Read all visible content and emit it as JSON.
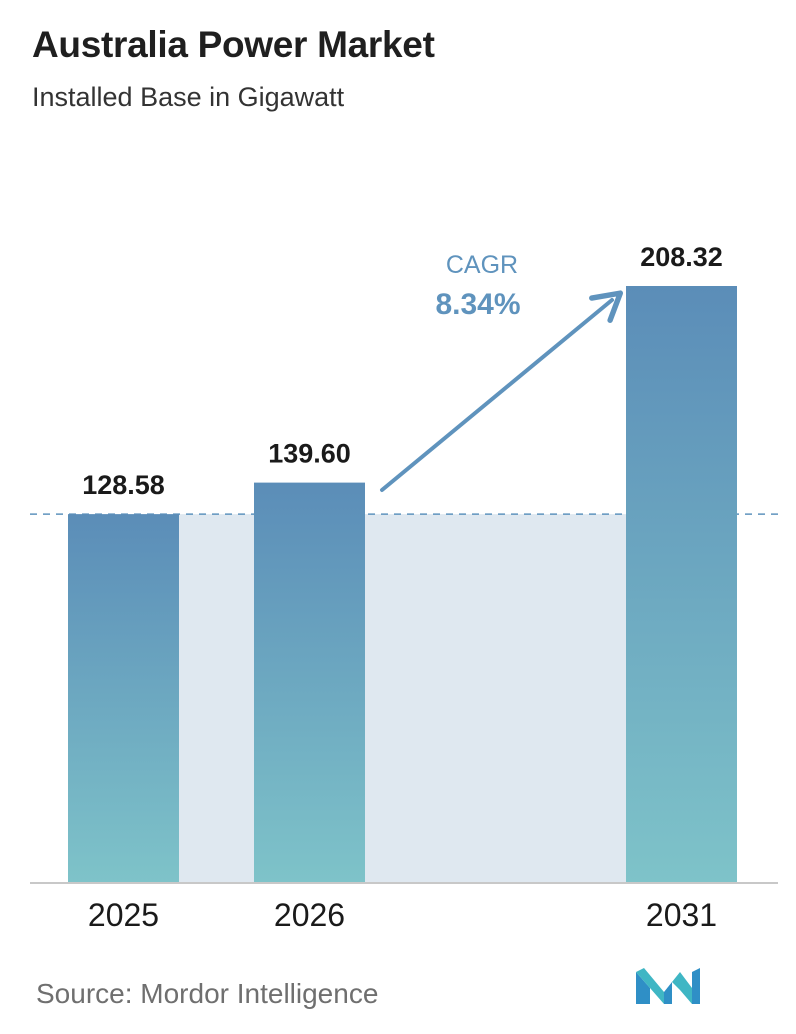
{
  "header": {
    "title": "Australia Power Market",
    "subtitle": "Installed Base in Gigawatt"
  },
  "annotation": {
    "cagr_label": "CAGR",
    "cagr_value": "8.34%"
  },
  "footer": {
    "source": "Source:  Mordor Intelligence"
  },
  "colors": {
    "bar_top": "#5b8db8",
    "bar_bottom": "#7ec3c9",
    "band": "#dfe8f0",
    "arrow": "#5f93bd",
    "baseline": "#c8c8c8",
    "dashed_line": "#5f93bd"
  },
  "chart_data": {
    "type": "bar",
    "categories": [
      "2025",
      "2026",
      "2031"
    ],
    "values": [
      128.58,
      139.6,
      208.32
    ],
    "value_labels": [
      "128.58",
      "139.60",
      "208.32"
    ],
    "title": "Australia Power Market",
    "subtitle": "Installed Base in Gigawatt",
    "xlabel": "",
    "ylabel": "",
    "grid": false,
    "annotation": "CAGR 8.34%"
  }
}
